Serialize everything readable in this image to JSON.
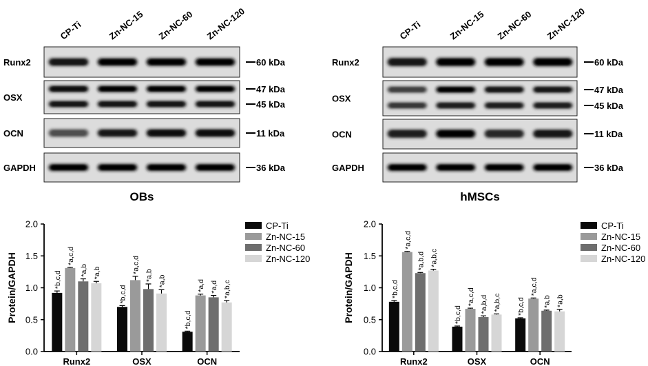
{
  "blots": [
    {
      "title": "OBs",
      "lanes": [
        "CP-Ti",
        "Zn-NC-15",
        "Zn-NC-60",
        "Zn-NC-120"
      ],
      "rows": [
        {
          "name": "Runx2",
          "markers": [
            "60 kDa"
          ]
        },
        {
          "name": "OSX",
          "markers": [
            "47 kDa",
            "45 kDa"
          ]
        },
        {
          "name": "OCN",
          "markers": [
            "11 kDa"
          ]
        },
        {
          "name": "GAPDH",
          "markers": [
            "36 kDa"
          ]
        }
      ]
    },
    {
      "title": "hMSCs",
      "lanes": [
        "CP-Ti",
        "Zn-NC-15",
        "Zn-NC-60",
        "Zn-NC-120"
      ],
      "rows": [
        {
          "name": "Runx2",
          "markers": [
            "60 kDa"
          ]
        },
        {
          "name": "OSX",
          "markers": [
            "47 kDa",
            "45 kDa"
          ]
        },
        {
          "name": "OCN",
          "markers": [
            "11 kDa"
          ]
        },
        {
          "name": "GAPDH",
          "markers": [
            "36 kDa"
          ]
        }
      ]
    }
  ],
  "chart_data": [
    {
      "type": "bar",
      "title": "",
      "xlabel": "",
      "ylabel": "Protein/GAPDH",
      "ylim": [
        0,
        2.0
      ],
      "yticks": [
        "0.0",
        "0.5",
        "1.0",
        "1.5",
        "2.0"
      ],
      "categories": [
        "Runx2",
        "OSX",
        "OCN"
      ],
      "legend_position": "top-right",
      "series": [
        {
          "name": "CP-Ti",
          "color": "#0a0a0a",
          "values": [
            0.92,
            0.7,
            0.31
          ],
          "errors": [
            0.03,
            0.02,
            0.01
          ],
          "labels": [
            "*b,c,d",
            "*b,c,d",
            "*b,c,d"
          ]
        },
        {
          "name": "Zn-NC-15",
          "color": "#9a9a9a",
          "values": [
            1.31,
            1.12,
            0.88
          ],
          "errors": [
            0.01,
            0.06,
            0.02
          ],
          "labels": [
            "*a,c,d",
            "*a,c,d",
            "*a,d"
          ]
        },
        {
          "name": "Zn-NC-60",
          "color": "#6e6e6e",
          "values": [
            1.1,
            0.98,
            0.85
          ],
          "errors": [
            0.04,
            0.08,
            0.03
          ],
          "labels": [
            "*a,b",
            "*a,b",
            "*a,d"
          ]
        },
        {
          "name": "Zn-NC-120",
          "color": "#d6d6d6",
          "values": [
            1.07,
            0.91,
            0.77
          ],
          "errors": [
            0.03,
            0.06,
            0.03
          ],
          "labels": [
            "*a,b",
            "*a,b",
            "*a,b,c"
          ]
        }
      ]
    },
    {
      "type": "bar",
      "title": "",
      "xlabel": "",
      "ylabel": "Protein/GAPDH",
      "ylim": [
        0,
        2.0
      ],
      "yticks": [
        "0.0",
        "0.5",
        "1.0",
        "1.5",
        "2.0"
      ],
      "categories": [
        "Runx2",
        "OSX",
        "OCN"
      ],
      "legend_position": "top-right",
      "series": [
        {
          "name": "CP-Ti",
          "color": "#0a0a0a",
          "values": [
            0.78,
            0.39,
            0.52
          ],
          "errors": [
            0.02,
            0.01,
            0.01
          ],
          "labels": [
            "*b,c,d",
            "*b,c,d",
            "*b,c,d"
          ]
        },
        {
          "name": "Zn-NC-15",
          "color": "#9a9a9a",
          "values": [
            1.56,
            0.67,
            0.83
          ],
          "errors": [
            0.01,
            0.01,
            0.01
          ],
          "labels": [
            "*a,c,d",
            "*a,c,d",
            "*a,c,d"
          ]
        },
        {
          "name": "Zn-NC-60",
          "color": "#6e6e6e",
          "values": [
            1.23,
            0.54,
            0.64
          ],
          "errors": [
            0.01,
            0.02,
            0.01
          ],
          "labels": [
            "*a,b,d",
            "*a,b,d",
            "*a,b"
          ]
        },
        {
          "name": "Zn-NC-120",
          "color": "#d6d6d6",
          "values": [
            1.27,
            0.58,
            0.63
          ],
          "errors": [
            0.02,
            0.01,
            0.03
          ],
          "labels": [
            "*a,b,c",
            "*a,b,c",
            "*a,b"
          ]
        }
      ]
    }
  ]
}
